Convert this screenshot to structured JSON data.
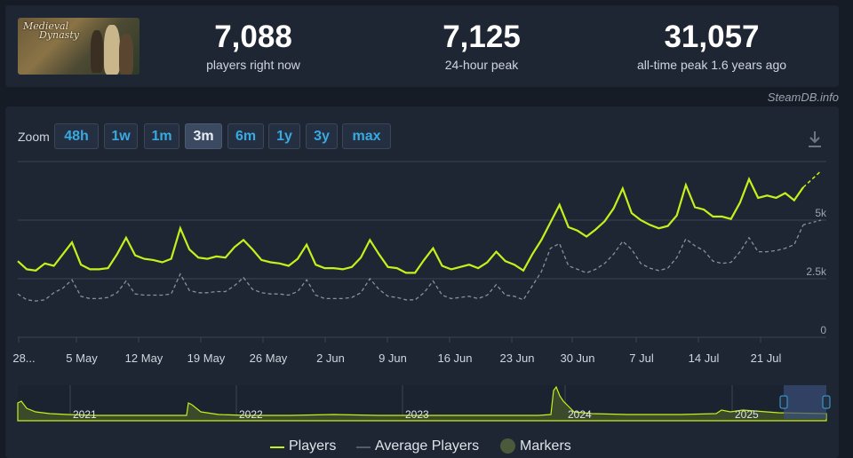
{
  "stats": {
    "current": {
      "value": "7,088",
      "label": "players right now"
    },
    "peak24": {
      "value": "7,125",
      "label": "24-hour peak"
    },
    "alltime": {
      "value": "31,057",
      "label": "all-time peak 1.6 years ago"
    }
  },
  "thumbnail": {
    "title_line1": "Medieval",
    "title_line2": "Dynasty"
  },
  "credit": "SteamDB.info",
  "zoom": {
    "label": "Zoom",
    "buttons": [
      "48h",
      "1w",
      "1m",
      "3m",
      "6m",
      "1y",
      "3y",
      "max"
    ],
    "active": "3m"
  },
  "colors": {
    "players": "#c6f01c",
    "average": "#8a8f98",
    "markers": "#4b5a3a",
    "accent": "#39a9e0"
  },
  "chart_data": {
    "type": "line",
    "x_ticks": [
      "28...",
      "5 May",
      "12 May",
      "19 May",
      "26 May",
      "2 Jun",
      "9 Jun",
      "16 Jun",
      "23 Jun",
      "30 Jun",
      "7 Jul",
      "14 Jul",
      "21 Jul"
    ],
    "y_ticks": [
      "0",
      "2.5k",
      "5k"
    ],
    "ylim": [
      0,
      7500
    ],
    "series": [
      {
        "name": "Players",
        "values": [
          3250,
          2900,
          2850,
          3150,
          3050,
          3550,
          4050,
          3100,
          2900,
          2900,
          2950,
          3550,
          4250,
          3500,
          3350,
          3300,
          3200,
          3350,
          4650,
          3750,
          3400,
          3350,
          3450,
          3400,
          3850,
          4150,
          3750,
          3300,
          3200,
          3150,
          3050,
          3350,
          3950,
          3100,
          2950,
          2950,
          2900,
          3000,
          3400,
          4150,
          3550,
          3000,
          2950,
          2750,
          2750,
          3300,
          3800,
          3050,
          2900,
          3000,
          3100,
          2950,
          3200,
          3650,
          3250,
          3100,
          2850,
          3550,
          4150,
          4900,
          5650,
          4700,
          4550,
          4300,
          4600,
          4950,
          5500,
          6350,
          5300,
          5000,
          4800,
          4650,
          4750,
          5200,
          6500,
          5550,
          5450,
          5150,
          5150,
          5050,
          5750,
          6750,
          5950,
          6050,
          5950,
          6150,
          5850,
          6400
        ]
      },
      {
        "name": "Average Players",
        "values": [
          1850,
          1600,
          1550,
          1600,
          1900,
          2100,
          2450,
          1750,
          1650,
          1650,
          1700,
          1900,
          2400,
          1850,
          1800,
          1800,
          1800,
          1850,
          2700,
          2000,
          1900,
          1900,
          1950,
          1950,
          2200,
          2550,
          2050,
          1900,
          1850,
          1850,
          1800,
          1950,
          2450,
          1800,
          1650,
          1650,
          1650,
          1700,
          1900,
          2500,
          2050,
          1750,
          1700,
          1600,
          1600,
          1900,
          2400,
          1800,
          1650,
          1700,
          1750,
          1650,
          1800,
          2250,
          1800,
          1750,
          1600,
          2200,
          2800,
          3800,
          4000,
          3050,
          2900,
          2750,
          2900,
          3150,
          3550,
          4100,
          3750,
          3150,
          2950,
          2850,
          2950,
          3400,
          4200,
          3900,
          3700,
          3250,
          3150,
          3200,
          3650,
          4250,
          3650,
          3650,
          3700,
          3800,
          3950,
          4800
        ]
      }
    ],
    "overview": {
      "labels": [
        "2021",
        "2022",
        "2023",
        "2024",
        "2025"
      ]
    }
  },
  "legend": {
    "players": "Players",
    "average": "Average Players",
    "markers": "Markers"
  }
}
